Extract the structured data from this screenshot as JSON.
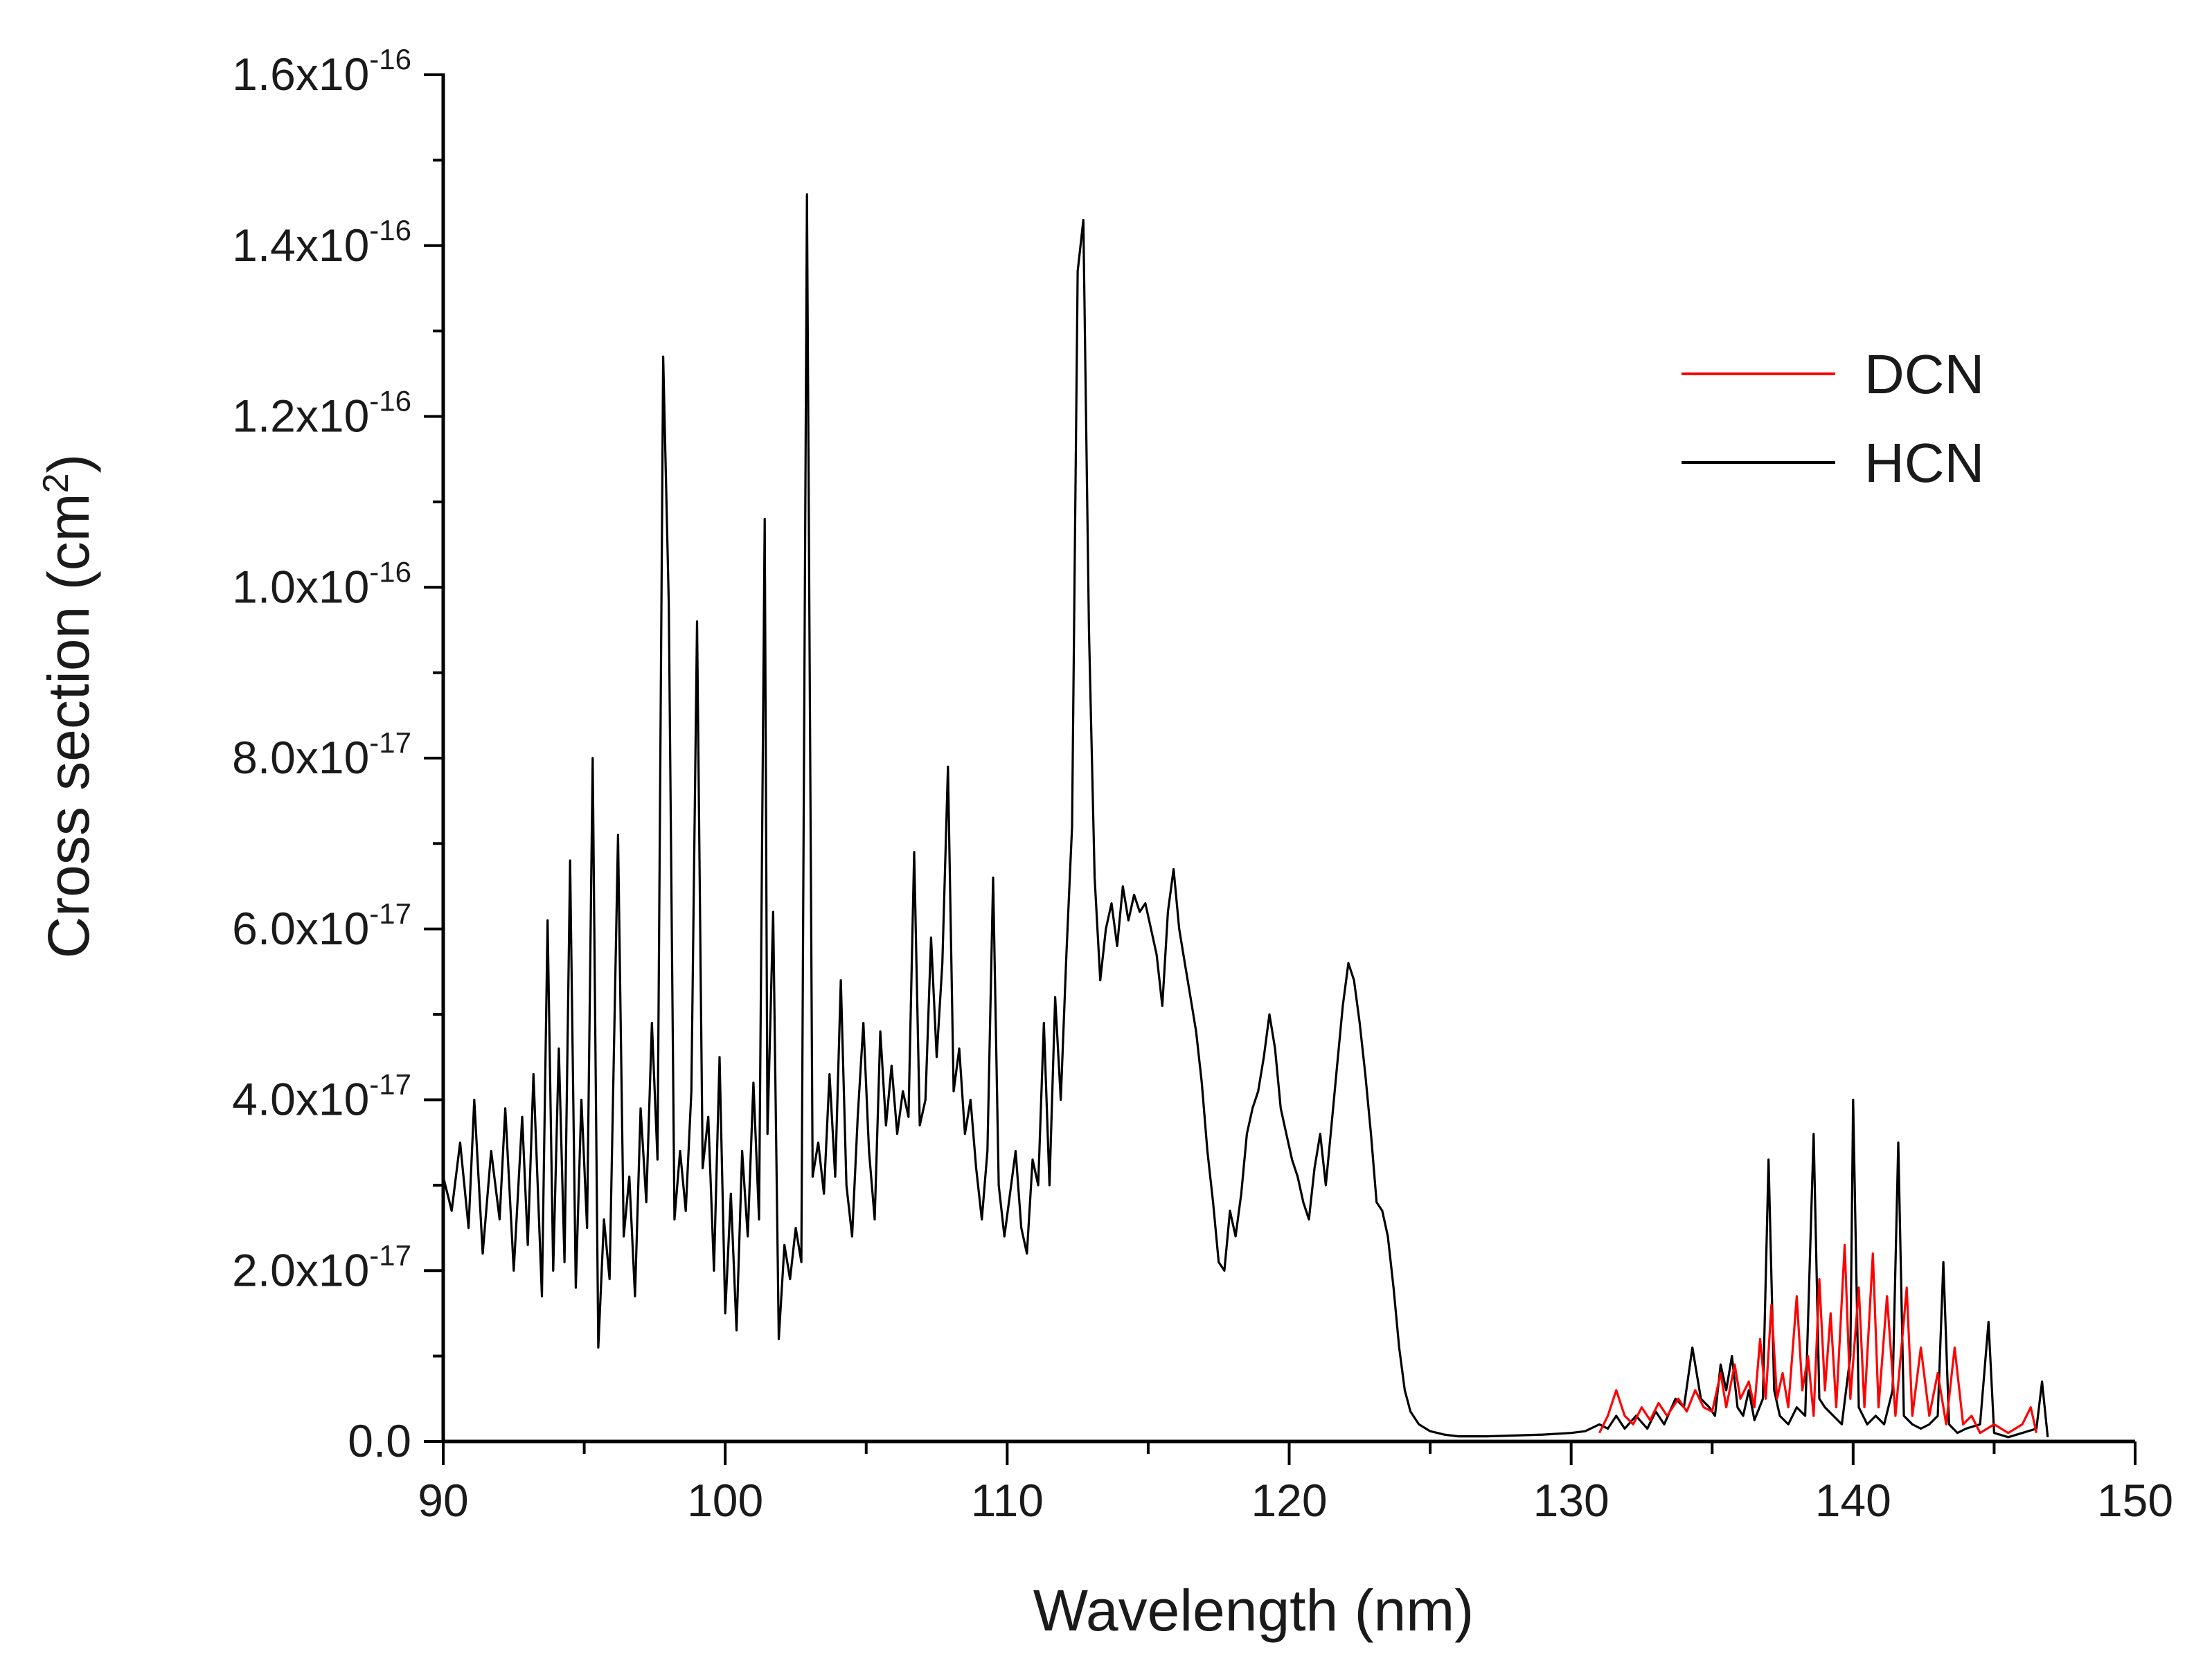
{
  "chart_data": {
    "type": "line",
    "title": "",
    "xlabel": "Wavelength (nm)",
    "ylabel_main": "Cross section (cm",
    "ylabel_sup": "2",
    "ylabel_close": ")",
    "xlim": [
      90,
      150
    ],
    "ylim": [
      0,
      1.6e-16
    ],
    "x_ticks": [
      90,
      100,
      110,
      120,
      130,
      140,
      150
    ],
    "x_tick_labels": [
      "90",
      "100",
      "110",
      "120",
      "130",
      "140",
      "150"
    ],
    "y_ticks": [
      0,
      2e-17,
      4e-17,
      6e-17,
      8e-17,
      1e-16,
      1.2e-16,
      1.4e-16,
      1.6e-16
    ],
    "y_tick_labels": [
      {
        "base": "0.0",
        "exp": ""
      },
      {
        "base": "2.0x10",
        "exp": "-17"
      },
      {
        "base": "4.0x10",
        "exp": "-17"
      },
      {
        "base": "6.0x10",
        "exp": "-17"
      },
      {
        "base": "8.0x10",
        "exp": "-17"
      },
      {
        "base": "1.0x10",
        "exp": "-16"
      },
      {
        "base": "1.2x10",
        "exp": "-16"
      },
      {
        "base": "1.4x10",
        "exp": "-16"
      },
      {
        "base": "1.6x10",
        "exp": "-16"
      }
    ],
    "y_scale": 1e-17,
    "y_scale_note": "series values are in units of 1e-17 cm^2",
    "legend_position": "top-right",
    "series": [
      {
        "name": "HCN",
        "color": "#000000",
        "points": [
          [
            90,
            3.1
          ],
          [
            90.3,
            2.7
          ],
          [
            90.6,
            3.5
          ],
          [
            90.9,
            2.5
          ],
          [
            91.1,
            4.0
          ],
          [
            91.4,
            2.2
          ],
          [
            91.7,
            3.4
          ],
          [
            92.0,
            2.6
          ],
          [
            92.2,
            3.9
          ],
          [
            92.5,
            2.0
          ],
          [
            92.8,
            3.8
          ],
          [
            93.0,
            2.3
          ],
          [
            93.2,
            4.3
          ],
          [
            93.5,
            1.7
          ],
          [
            93.7,
            6.1
          ],
          [
            93.9,
            2.0
          ],
          [
            94.1,
            4.6
          ],
          [
            94.3,
            2.1
          ],
          [
            94.5,
            6.8
          ],
          [
            94.7,
            1.8
          ],
          [
            94.9,
            4.0
          ],
          [
            95.1,
            2.5
          ],
          [
            95.3,
            8.0
          ],
          [
            95.5,
            1.1
          ],
          [
            95.7,
            2.6
          ],
          [
            95.9,
            1.9
          ],
          [
            96.2,
            7.1
          ],
          [
            96.4,
            2.4
          ],
          [
            96.6,
            3.1
          ],
          [
            96.8,
            1.7
          ],
          [
            97.0,
            3.9
          ],
          [
            97.2,
            2.8
          ],
          [
            97.4,
            4.9
          ],
          [
            97.6,
            3.3
          ],
          [
            97.8,
            12.7
          ],
          [
            98.0,
            9.8
          ],
          [
            98.2,
            2.6
          ],
          [
            98.4,
            3.4
          ],
          [
            98.6,
            2.7
          ],
          [
            98.8,
            4.1
          ],
          [
            99.0,
            9.6
          ],
          [
            99.2,
            3.2
          ],
          [
            99.4,
            3.8
          ],
          [
            99.6,
            2.0
          ],
          [
            99.8,
            4.5
          ],
          [
            100.0,
            1.5
          ],
          [
            100.2,
            2.9
          ],
          [
            100.4,
            1.3
          ],
          [
            100.6,
            3.4
          ],
          [
            100.8,
            2.4
          ],
          [
            101.0,
            4.2
          ],
          [
            101.2,
            2.6
          ],
          [
            101.4,
            10.8
          ],
          [
            101.5,
            3.6
          ],
          [
            101.7,
            6.2
          ],
          [
            101.9,
            1.2
          ],
          [
            102.1,
            2.3
          ],
          [
            102.3,
            1.9
          ],
          [
            102.5,
            2.5
          ],
          [
            102.7,
            2.1
          ],
          [
            102.9,
            14.6
          ],
          [
            103.1,
            3.1
          ],
          [
            103.3,
            3.5
          ],
          [
            103.5,
            2.9
          ],
          [
            103.7,
            4.3
          ],
          [
            103.9,
            3.1
          ],
          [
            104.1,
            5.4
          ],
          [
            104.3,
            3.0
          ],
          [
            104.5,
            2.4
          ],
          [
            104.7,
            3.8
          ],
          [
            104.9,
            4.9
          ],
          [
            105.1,
            3.4
          ],
          [
            105.3,
            2.6
          ],
          [
            105.5,
            4.8
          ],
          [
            105.7,
            3.7
          ],
          [
            105.9,
            4.4
          ],
          [
            106.1,
            3.6
          ],
          [
            106.3,
            4.1
          ],
          [
            106.5,
            3.8
          ],
          [
            106.7,
            6.9
          ],
          [
            106.9,
            3.7
          ],
          [
            107.1,
            4.0
          ],
          [
            107.3,
            5.9
          ],
          [
            107.5,
            4.5
          ],
          [
            107.7,
            5.6
          ],
          [
            107.9,
            7.9
          ],
          [
            108.1,
            4.1
          ],
          [
            108.3,
            4.6
          ],
          [
            108.5,
            3.6
          ],
          [
            108.7,
            4.0
          ],
          [
            108.9,
            3.2
          ],
          [
            109.1,
            2.6
          ],
          [
            109.3,
            3.4
          ],
          [
            109.5,
            6.6
          ],
          [
            109.7,
            3.0
          ],
          [
            109.9,
            2.4
          ],
          [
            110.1,
            2.9
          ],
          [
            110.3,
            3.4
          ],
          [
            110.5,
            2.5
          ],
          [
            110.7,
            2.2
          ],
          [
            110.9,
            3.3
          ],
          [
            111.1,
            3.0
          ],
          [
            111.3,
            4.9
          ],
          [
            111.5,
            3.0
          ],
          [
            111.7,
            5.2
          ],
          [
            111.9,
            4.0
          ],
          [
            112.1,
            5.7
          ],
          [
            112.3,
            7.2
          ],
          [
            112.5,
            13.7
          ],
          [
            112.7,
            14.3
          ],
          [
            112.9,
            9.5
          ],
          [
            113.1,
            6.6
          ],
          [
            113.3,
            5.4
          ],
          [
            113.5,
            6.0
          ],
          [
            113.7,
            6.3
          ],
          [
            113.9,
            5.8
          ],
          [
            114.1,
            6.5
          ],
          [
            114.3,
            6.1
          ],
          [
            114.5,
            6.4
          ],
          [
            114.7,
            6.2
          ],
          [
            114.9,
            6.3
          ],
          [
            115.1,
            6.0
          ],
          [
            115.3,
            5.7
          ],
          [
            115.5,
            5.1
          ],
          [
            115.7,
            6.2
          ],
          [
            115.9,
            6.7
          ],
          [
            116.1,
            6.0
          ],
          [
            116.3,
            5.6
          ],
          [
            116.5,
            5.2
          ],
          [
            116.7,
            4.8
          ],
          [
            116.9,
            4.2
          ],
          [
            117.1,
            3.4
          ],
          [
            117.3,
            2.8
          ],
          [
            117.5,
            2.1
          ],
          [
            117.7,
            2.0
          ],
          [
            117.9,
            2.7
          ],
          [
            118.1,
            2.4
          ],
          [
            118.3,
            2.9
          ],
          [
            118.5,
            3.6
          ],
          [
            118.7,
            3.9
          ],
          [
            118.9,
            4.1
          ],
          [
            119.1,
            4.5
          ],
          [
            119.3,
            5.0
          ],
          [
            119.5,
            4.6
          ],
          [
            119.7,
            3.9
          ],
          [
            119.9,
            3.6
          ],
          [
            120.1,
            3.3
          ],
          [
            120.3,
            3.1
          ],
          [
            120.5,
            2.8
          ],
          [
            120.7,
            2.6
          ],
          [
            120.9,
            3.2
          ],
          [
            121.1,
            3.6
          ],
          [
            121.3,
            3.0
          ],
          [
            121.5,
            3.7
          ],
          [
            121.7,
            4.4
          ],
          [
            121.9,
            5.1
          ],
          [
            122.1,
            5.6
          ],
          [
            122.3,
            5.4
          ],
          [
            122.5,
            4.9
          ],
          [
            122.7,
            4.3
          ],
          [
            122.9,
            3.6
          ],
          [
            123.1,
            2.8
          ],
          [
            123.3,
            2.7
          ],
          [
            123.5,
            2.4
          ],
          [
            123.7,
            1.8
          ],
          [
            123.9,
            1.1
          ],
          [
            124.1,
            0.6
          ],
          [
            124.3,
            0.35
          ],
          [
            124.6,
            0.2
          ],
          [
            125.0,
            0.12
          ],
          [
            125.5,
            0.08
          ],
          [
            126.0,
            0.06
          ],
          [
            127.0,
            0.06
          ],
          [
            128.0,
            0.07
          ],
          [
            129.0,
            0.08
          ],
          [
            130.0,
            0.1
          ],
          [
            130.5,
            0.12
          ],
          [
            131.0,
            0.2
          ],
          [
            131.3,
            0.15
          ],
          [
            131.6,
            0.3
          ],
          [
            131.9,
            0.15
          ],
          [
            132.3,
            0.3
          ],
          [
            132.7,
            0.15
          ],
          [
            133.0,
            0.35
          ],
          [
            133.3,
            0.2
          ],
          [
            133.7,
            0.5
          ],
          [
            134.0,
            0.4
          ],
          [
            134.3,
            1.1
          ],
          [
            134.6,
            0.5
          ],
          [
            134.9,
            0.4
          ],
          [
            135.1,
            0.3
          ],
          [
            135.3,
            0.9
          ],
          [
            135.5,
            0.6
          ],
          [
            135.7,
            1.0
          ],
          [
            135.9,
            0.4
          ],
          [
            136.1,
            0.3
          ],
          [
            136.3,
            0.6
          ],
          [
            136.5,
            0.25
          ],
          [
            136.8,
            0.5
          ],
          [
            137.0,
            3.3
          ],
          [
            137.2,
            0.6
          ],
          [
            137.4,
            0.3
          ],
          [
            137.7,
            0.2
          ],
          [
            138.0,
            0.4
          ],
          [
            138.3,
            0.3
          ],
          [
            138.6,
            3.6
          ],
          [
            138.8,
            0.5
          ],
          [
            139.0,
            0.4
          ],
          [
            139.3,
            0.3
          ],
          [
            139.6,
            0.2
          ],
          [
            139.9,
            1.0
          ],
          [
            140.0,
            4.0
          ],
          [
            140.2,
            0.4
          ],
          [
            140.5,
            0.2
          ],
          [
            140.8,
            0.3
          ],
          [
            141.1,
            0.2
          ],
          [
            141.4,
            0.6
          ],
          [
            141.6,
            3.5
          ],
          [
            141.8,
            0.3
          ],
          [
            142.1,
            0.2
          ],
          [
            142.4,
            0.15
          ],
          [
            142.7,
            0.2
          ],
          [
            143.0,
            0.3
          ],
          [
            143.2,
            2.1
          ],
          [
            143.4,
            0.2
          ],
          [
            143.7,
            0.1
          ],
          [
            144.0,
            0.15
          ],
          [
            144.5,
            0.2
          ],
          [
            144.8,
            1.4
          ],
          [
            145.0,
            0.1
          ],
          [
            145.5,
            0.05
          ],
          [
            146.0,
            0.1
          ],
          [
            146.5,
            0.15
          ],
          [
            146.7,
            0.7
          ],
          [
            146.9,
            0.05
          ]
        ]
      },
      {
        "name": "DCN",
        "color": "#ff0000",
        "points": [
          [
            131.0,
            0.1
          ],
          [
            131.3,
            0.3
          ],
          [
            131.6,
            0.6
          ],
          [
            131.9,
            0.3
          ],
          [
            132.2,
            0.2
          ],
          [
            132.5,
            0.4
          ],
          [
            132.8,
            0.25
          ],
          [
            133.1,
            0.45
          ],
          [
            133.4,
            0.3
          ],
          [
            133.8,
            0.5
          ],
          [
            134.1,
            0.35
          ],
          [
            134.4,
            0.6
          ],
          [
            134.7,
            0.4
          ],
          [
            135.0,
            0.35
          ],
          [
            135.3,
            0.8
          ],
          [
            135.5,
            0.4
          ],
          [
            135.8,
            0.9
          ],
          [
            136.0,
            0.5
          ],
          [
            136.3,
            0.7
          ],
          [
            136.5,
            0.4
          ],
          [
            136.7,
            1.2
          ],
          [
            136.9,
            0.5
          ],
          [
            137.1,
            1.6
          ],
          [
            137.3,
            0.5
          ],
          [
            137.5,
            0.8
          ],
          [
            137.7,
            0.4
          ],
          [
            138.0,
            1.7
          ],
          [
            138.2,
            0.6
          ],
          [
            138.4,
            1.0
          ],
          [
            138.6,
            0.3
          ],
          [
            138.8,
            1.9
          ],
          [
            139.0,
            0.6
          ],
          [
            139.2,
            1.5
          ],
          [
            139.4,
            0.4
          ],
          [
            139.7,
            2.3
          ],
          [
            139.9,
            0.5
          ],
          [
            140.2,
            1.8
          ],
          [
            140.4,
            0.4
          ],
          [
            140.7,
            2.2
          ],
          [
            140.9,
            0.4
          ],
          [
            141.2,
            1.7
          ],
          [
            141.5,
            0.3
          ],
          [
            141.9,
            1.8
          ],
          [
            142.1,
            0.3
          ],
          [
            142.4,
            1.1
          ],
          [
            142.7,
            0.3
          ],
          [
            143.0,
            0.8
          ],
          [
            143.3,
            0.2
          ],
          [
            143.6,
            1.1
          ],
          [
            143.9,
            0.2
          ],
          [
            144.2,
            0.3
          ],
          [
            144.5,
            0.1
          ],
          [
            145.0,
            0.2
          ],
          [
            145.5,
            0.1
          ],
          [
            146.0,
            0.2
          ],
          [
            146.3,
            0.4
          ],
          [
            146.5,
            0.1
          ]
        ]
      }
    ]
  }
}
